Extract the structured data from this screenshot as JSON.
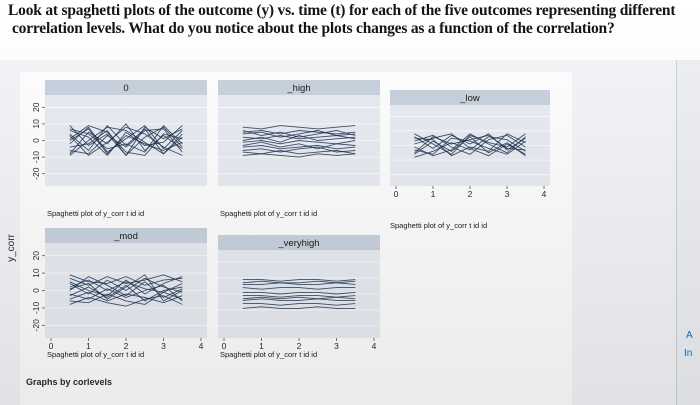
{
  "question": {
    "line1": "Look at spaghetti plots of the outcome (y) vs. time (t) for each of the five outcomes representing different",
    "line2": "correlation levels. What do you notice about the plots changes as a function of the correlation?"
  },
  "figure": {
    "ylabel": "y_corr",
    "note": "Graphs by corlevels",
    "colors": {
      "background": "#ffffff",
      "panel": "#e9edf3",
      "strip": "#c9d3df",
      "line": "#1e3452",
      "text": "#2b2b2b"
    }
  },
  "side_glyphs": {
    "a": "A",
    "b": "In"
  },
  "chart_data": [
    {
      "type": "line",
      "panel_title": "0",
      "caption": "Spaghetti plot of y_corr t id id",
      "xticks": [
        "0",
        "1",
        "2",
        "3",
        "4"
      ],
      "yticks": [
        "-20",
        "-10",
        "0",
        "10",
        "20"
      ],
      "ylim": [
        -25,
        25
      ],
      "xlim": [
        0,
        4
      ],
      "x": [
        0.5,
        1,
        1.5,
        2,
        2.5,
        3,
        3.5
      ],
      "series": [
        {
          "values": [
            4,
            -6,
            9,
            -3,
            7,
            -8,
            2
          ]
        },
        {
          "values": [
            -8,
            5,
            -2,
            10,
            -6,
            3,
            -5
          ]
        },
        {
          "values": [
            9,
            -3,
            4,
            -9,
            2,
            8,
            -4
          ]
        },
        {
          "values": [
            -2,
            8,
            -7,
            1,
            9,
            -5,
            6
          ]
        },
        {
          "values": [
            6,
            2,
            -9,
            5,
            -3,
            -1,
            9
          ]
        },
        {
          "values": [
            -6,
            -8,
            3,
            -4,
            6,
            7,
            -7
          ]
        },
        {
          "values": [
            1,
            9,
            5,
            -7,
            -9,
            4,
            1
          ]
        },
        {
          "values": [
            -9,
            0,
            8,
            6,
            -1,
            -8,
            4
          ]
        },
        {
          "values": [
            3,
            -9,
            -1,
            8,
            4,
            -4,
            -9
          ]
        },
        {
          "values": [
            7,
            4,
            -5,
            -2,
            -7,
            9,
            -2
          ]
        },
        {
          "values": [
            -4,
            -2,
            6,
            -9,
            8,
            1,
            7
          ]
        },
        {
          "values": [
            0,
            7,
            -8,
            3,
            -2,
            -6,
            -1
          ]
        }
      ]
    },
    {
      "type": "line",
      "panel_title": "_high",
      "caption": "Spaghetti plot of y_corr t id id",
      "xticks": [
        "0",
        "1",
        "2",
        "3",
        "4"
      ],
      "yticks": [
        "-20",
        "-10",
        "0",
        "10",
        "20"
      ],
      "ylim": [
        -25,
        25
      ],
      "xlim": [
        0,
        4
      ],
      "x": [
        0.5,
        1,
        1.5,
        2,
        2.5,
        3,
        3.5
      ],
      "series": [
        {
          "values": [
            8,
            7,
            9,
            8,
            7,
            8,
            9
          ]
        },
        {
          "values": [
            5,
            6,
            4,
            6,
            5,
            4,
            5
          ]
        },
        {
          "values": [
            2,
            1,
            3,
            1,
            2,
            3,
            1
          ]
        },
        {
          "values": [
            -1,
            0,
            -2,
            0,
            -1,
            -2,
            0
          ]
        },
        {
          "values": [
            -4,
            -3,
            -5,
            -4,
            -3,
            -5,
            -4
          ]
        },
        {
          "values": [
            -7,
            -8,
            -6,
            -8,
            -7,
            -6,
            -8
          ]
        },
        {
          "values": [
            6,
            3,
            5,
            2,
            4,
            6,
            3
          ]
        },
        {
          "values": [
            -3,
            -1,
            -4,
            -2,
            -5,
            -2,
            -3
          ]
        },
        {
          "values": [
            0,
            2,
            -1,
            3,
            0,
            1,
            2
          ]
        },
        {
          "values": [
            -6,
            -5,
            -7,
            -5,
            -4,
            -7,
            -6
          ]
        },
        {
          "values": [
            4,
            5,
            2,
            4,
            6,
            3,
            4
          ]
        },
        {
          "values": [
            -9,
            -8,
            -9,
            -10,
            -8,
            -9,
            -8
          ]
        }
      ]
    },
    {
      "type": "line",
      "panel_title": "_low",
      "caption": "Spaghetti plot of y_corr t id id",
      "xticks": [
        "0",
        "1",
        "2",
        "3",
        "4"
      ],
      "yticks": [
        "-20",
        "-10",
        "0",
        "10",
        "20"
      ],
      "ylim": [
        -25,
        25
      ],
      "xlim": [
        0,
        4
      ],
      "x": [
        0.5,
        1,
        1.5,
        2,
        2.5,
        3,
        3.5
      ],
      "series": [
        {
          "values": [
            6,
            -2,
            7,
            1,
            8,
            -3,
            5
          ]
        },
        {
          "values": [
            -6,
            3,
            -4,
            6,
            -5,
            2,
            -7
          ]
        },
        {
          "values": [
            3,
            7,
            -1,
            -6,
            4,
            7,
            -1
          ]
        },
        {
          "values": [
            -3,
            -6,
            5,
            3,
            -2,
            -6,
            3
          ]
        },
        {
          "values": [
            8,
            1,
            -6,
            7,
            2,
            -1,
            8
          ]
        },
        {
          "values": [
            -8,
            -4,
            2,
            -3,
            6,
            4,
            -4
          ]
        },
        {
          "values": [
            1,
            5,
            8,
            -2,
            -7,
            1,
            -6
          ]
        },
        {
          "values": [
            -1,
            -7,
            -3,
            8,
            1,
            -5,
            6
          ]
        },
        {
          "values": [
            5,
            4,
            -7,
            -1,
            -4,
            8,
            2
          ]
        },
        {
          "values": [
            -5,
            6,
            1,
            4,
            7,
            -2,
            -3
          ]
        }
      ]
    },
    {
      "type": "line",
      "panel_title": "_mod",
      "caption": "Spaghetti plot of y_corr t id id",
      "xticks": [
        "0",
        "1",
        "2",
        "3",
        "4"
      ],
      "yticks": [
        "-20",
        "-10",
        "0",
        "10",
        "20"
      ],
      "ylim": [
        -25,
        25
      ],
      "xlim": [
        0,
        4
      ],
      "x": [
        0.5,
        1,
        1.5,
        2,
        2.5,
        3,
        3.5
      ],
      "series": [
        {
          "values": [
            7,
            3,
            8,
            4,
            6,
            9,
            5
          ]
        },
        {
          "values": [
            -5,
            -1,
            -6,
            -2,
            -4,
            -7,
            -3
          ]
        },
        {
          "values": [
            2,
            6,
            0,
            5,
            1,
            -1,
            4
          ]
        },
        {
          "values": [
            -2,
            -5,
            1,
            -4,
            0,
            3,
            -6
          ]
        },
        {
          "values": [
            9,
            5,
            4,
            8,
            3,
            6,
            7
          ]
        },
        {
          "values": [
            -8,
            -4,
            -7,
            -9,
            -5,
            -3,
            -8
          ]
        },
        {
          "values": [
            4,
            -2,
            6,
            0,
            7,
            2,
            -1
          ]
        },
        {
          "values": [
            -3,
            2,
            -4,
            3,
            -6,
            0,
            2
          ]
        },
        {
          "values": [
            0,
            8,
            3,
            -3,
            5,
            -4,
            1
          ]
        },
        {
          "values": [
            5,
            0,
            -3,
            6,
            -2,
            4,
            8
          ]
        },
        {
          "values": [
            -6,
            -7,
            -2,
            -6,
            -8,
            -1,
            -5
          ]
        },
        {
          "values": [
            1,
            4,
            -5,
            2,
            9,
            -6,
            0
          ]
        }
      ]
    },
    {
      "type": "line",
      "panel_title": "_veryhigh",
      "caption": "Spaghetti plot of y_corr t id id",
      "xticks": [
        "0",
        "1",
        "2",
        "3",
        "4"
      ],
      "yticks": [
        "-20",
        "-10",
        "0",
        "10",
        "20"
      ],
      "ylim": [
        -25,
        25
      ],
      "xlim": [
        0,
        4
      ],
      "x": [
        0.5,
        1,
        1.5,
        2,
        2.5,
        3,
        3.5
      ],
      "series": [
        {
          "values": [
            9,
            9,
            8,
            9,
            9,
            8,
            9
          ]
        },
        {
          "values": [
            6,
            6,
            7,
            6,
            6,
            7,
            6
          ]
        },
        {
          "values": [
            4,
            3,
            4,
            4,
            3,
            4,
            4
          ]
        },
        {
          "values": [
            1,
            1,
            0,
            1,
            1,
            0,
            1
          ]
        },
        {
          "values": [
            -1,
            -1,
            -2,
            -1,
            -1,
            -2,
            -1
          ]
        },
        {
          "values": [
            -4,
            -3,
            -4,
            -4,
            -3,
            -4,
            -4
          ]
        },
        {
          "values": [
            -6,
            -6,
            -7,
            -6,
            -6,
            -7,
            -6
          ]
        },
        {
          "values": [
            -9,
            -8,
            -9,
            -9,
            -8,
            -9,
            -9
          ]
        },
        {
          "values": [
            7,
            8,
            7,
            7,
            8,
            7,
            8
          ]
        },
        {
          "values": [
            -3,
            -2,
            -3,
            -2,
            -3,
            -2,
            -3
          ]
        }
      ]
    }
  ]
}
